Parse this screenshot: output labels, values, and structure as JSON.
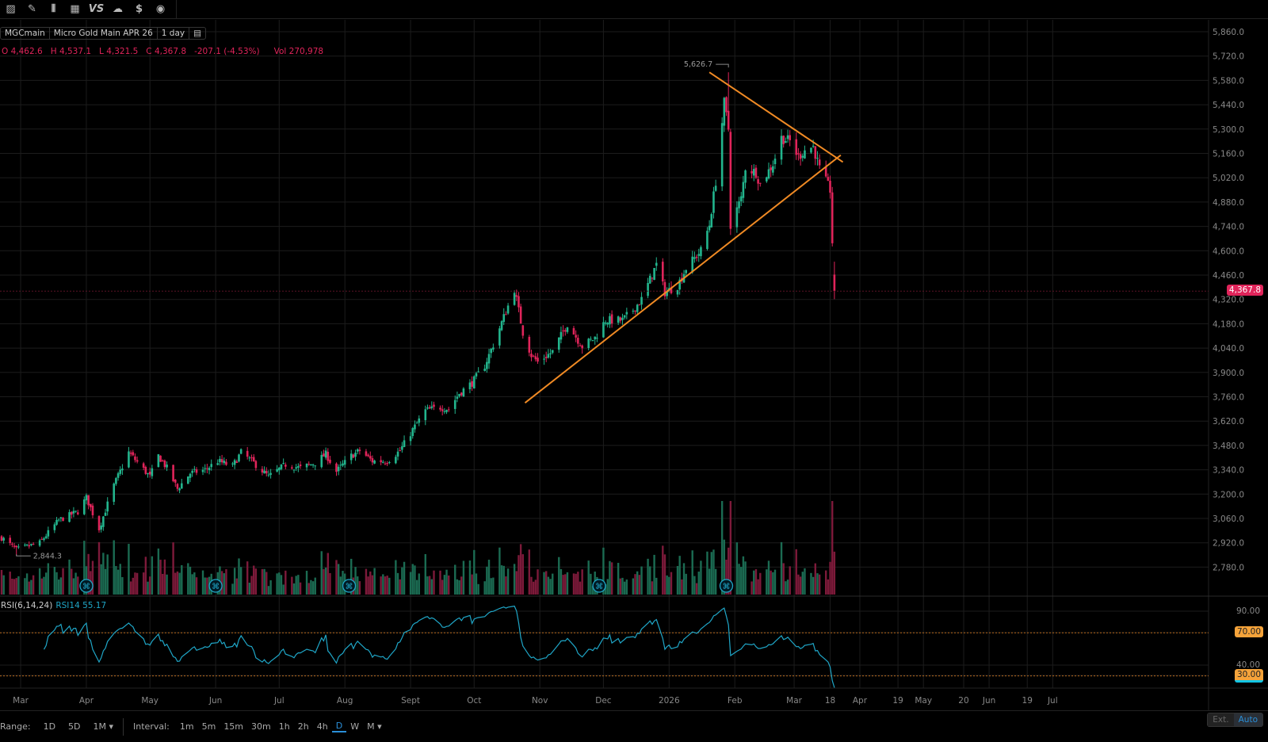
{
  "toolbar": {
    "icons": [
      "chart-style-icon",
      "drawing-pencil-icon",
      "candlestick-icon",
      "layout-grid-icon",
      "compare-vs-icon",
      "cloud-icon",
      "dollar-icon",
      "replay-icon"
    ],
    "vs_label": "VS"
  },
  "legend": {
    "symbol": "MGCmain",
    "name": "Micro Gold Main APR 26",
    "interval": "1 day"
  },
  "ohlc": {
    "o_label": "O",
    "o": "4,462.6",
    "h_label": "H",
    "h": "4,537.1",
    "l_label": "L",
    "l": "4,321.5",
    "c_label": "C",
    "c": "4,367.8",
    "change": "-207.1 (-4.53%)",
    "vol_label": "Vol",
    "vol": "270,978"
  },
  "rsi": {
    "label": "RSI(6,14,24)",
    "value_label": "RSI14 55.17",
    "axis": [
      "90.00",
      "40.00"
    ],
    "overbought": "70.00",
    "oversold": "30.00"
  },
  "colors": {
    "up": "#22b58d",
    "down": "#e0245a",
    "up_vol": "#1b6b52",
    "down_vol": "#7d1a3a",
    "trendline": "#f08a24",
    "rsi": "#1fa6c7",
    "price_tag": "#e0245a",
    "rsi_tag": "#f5a33a"
  },
  "bottom": {
    "range_label": "Range:",
    "ranges": [
      "1D",
      "5D",
      "1M ▾"
    ],
    "interval_label": "Interval:",
    "intervals": [
      "1m",
      "5m",
      "15m",
      "30m",
      "1h",
      "2h",
      "4h",
      "D",
      "W",
      "M ▾"
    ],
    "selected_interval": "D",
    "ext": "Ext.",
    "auto": "Auto"
  },
  "chart_data": {
    "type": "candlestick",
    "symbol": "MGCmain",
    "y_ticks": [
      "5,860.0",
      "5,720.0",
      "5,580.0",
      "5,440.0",
      "5,300.0",
      "5,160.0",
      "5,020.0",
      "4,880.0",
      "4,740.0",
      "4,600.0",
      "4,460.0",
      "4,320.0",
      "4,180.0",
      "4,040.0",
      "3,900.0",
      "3,760.0",
      "3,620.0",
      "3,480.0",
      "3,340.0",
      "3,200.0",
      "3,060.0",
      "2,920.0",
      "2,780.0"
    ],
    "y_tick_values": [
      5860,
      5720,
      5580,
      5440,
      5300,
      5160,
      5020,
      4880,
      4740,
      4600,
      4460,
      4320,
      4180,
      4040,
      3900,
      3760,
      3620,
      3480,
      3340,
      3200,
      3060,
      2920,
      2780
    ],
    "x_ticks": [
      {
        "label": "Mar",
        "date": "2025-03-01"
      },
      {
        "label": "Apr",
        "date": "2025-04-01"
      },
      {
        "label": "May",
        "date": "2025-05-01"
      },
      {
        "label": "Jun",
        "date": "2025-06-01"
      },
      {
        "label": "Jul",
        "date": "2025-07-01"
      },
      {
        "label": "Aug",
        "date": "2025-08-01"
      },
      {
        "label": "Sept",
        "date": "2025-09-01"
      },
      {
        "label": "Oct",
        "date": "2025-10-01"
      },
      {
        "label": "Nov",
        "date": "2025-11-01"
      },
      {
        "label": "Dec",
        "date": "2025-12-01"
      },
      {
        "label": "2026",
        "date": "2026-01-01"
      },
      {
        "label": "Feb",
        "date": "2026-02-01"
      },
      {
        "label": "Mar",
        "date": "2026-03-01"
      },
      {
        "label": "18",
        "date": "2026-03-18"
      },
      {
        "label": "Apr",
        "date": "2026-04-01"
      },
      {
        "label": "19",
        "date": "2026-04-19"
      },
      {
        "label": "May",
        "date": "2026-05-01"
      },
      {
        "label": "20",
        "date": "2026-05-20"
      },
      {
        "label": "Jun",
        "date": "2026-06-01"
      },
      {
        "label": "19",
        "date": "2026-06-19"
      },
      {
        "label": "Jul",
        "date": "2026-07-01"
      }
    ],
    "last_price": "4,367.8",
    "last_price_value": 4367.8,
    "last_candle": {
      "open": 4462.6,
      "high": 4537.1,
      "low": 4321.5,
      "close": 4367.8
    },
    "high_marker": {
      "label": "5,626.7",
      "value": 5626.7,
      "date": "2026-01-29"
    },
    "low_marker": {
      "label": "2,844.3",
      "value": 2844.3,
      "date": "2025-02-27"
    },
    "events_dates": [
      "2025-04-01",
      "2025-06-01",
      "2025-08-03",
      "2025-11-29",
      "2026-01-28"
    ],
    "trendlines": [
      {
        "from": {
          "date": "2026-01-20",
          "price": 5626.7
        },
        "to": {
          "date": "2026-03-24",
          "price": 5110
        }
      },
      {
        "from": {
          "date": "2025-10-25",
          "price": 3725
        },
        "to": {
          "date": "2026-03-23",
          "price": 5150
        }
      }
    ],
    "close_path": [
      [
        "2025-02-20",
        2950
      ],
      [
        "2025-02-27",
        2880
      ],
      [
        "2025-03-10",
        2920
      ],
      [
        "2025-03-19",
        3050
      ],
      [
        "2025-03-28",
        3100
      ],
      [
        "2025-04-01",
        3180
      ],
      [
        "2025-04-07",
        3000
      ],
      [
        "2025-04-14",
        3250
      ],
      [
        "2025-04-21",
        3440
      ],
      [
        "2025-05-01",
        3300
      ],
      [
        "2025-05-05",
        3420
      ],
      [
        "2025-05-09",
        3350
      ],
      [
        "2025-05-14",
        3230
      ],
      [
        "2025-05-20",
        3320
      ],
      [
        "2025-05-27",
        3340
      ],
      [
        "2025-06-02",
        3390
      ],
      [
        "2025-06-09",
        3360
      ],
      [
        "2025-06-13",
        3440
      ],
      [
        "2025-06-19",
        3380
      ],
      [
        "2025-06-26",
        3300
      ],
      [
        "2025-07-04",
        3370
      ],
      [
        "2025-07-11",
        3350
      ],
      [
        "2025-07-18",
        3380
      ],
      [
        "2025-07-23",
        3430
      ],
      [
        "2025-07-28",
        3330
      ],
      [
        "2025-08-04",
        3420
      ],
      [
        "2025-08-08",
        3450
      ],
      [
        "2025-08-14",
        3390
      ],
      [
        "2025-08-21",
        3390
      ],
      [
        "2025-08-27",
        3450
      ],
      [
        "2025-09-02",
        3570
      ],
      [
        "2025-09-08",
        3680
      ],
      [
        "2025-09-15",
        3700
      ],
      [
        "2025-09-19",
        3690
      ],
      [
        "2025-09-24",
        3780
      ],
      [
        "2025-09-30",
        3840
      ],
      [
        "2025-10-06",
        3940
      ],
      [
        "2025-10-10",
        4060
      ],
      [
        "2025-10-16",
        4250
      ],
      [
        "2025-10-20",
        4380
      ],
      [
        "2025-10-24",
        4130
      ],
      [
        "2025-10-28",
        4000
      ],
      [
        "2025-10-31",
        3960
      ],
      [
        "2025-11-07",
        4020
      ],
      [
        "2025-11-14",
        4180
      ],
      [
        "2025-11-21",
        4050
      ],
      [
        "2025-11-27",
        4100
      ],
      [
        "2025-12-02",
        4200
      ],
      [
        "2025-12-10",
        4200
      ],
      [
        "2025-12-15",
        4260
      ],
      [
        "2025-12-19",
        4320
      ],
      [
        "2025-12-26",
        4520
      ],
      [
        "2025-12-30",
        4360
      ],
      [
        "2026-01-05",
        4400
      ],
      [
        "2026-01-09",
        4500
      ],
      [
        "2026-01-16",
        4600
      ],
      [
        "2026-01-20",
        4750
      ],
      [
        "2026-01-23",
        5000
      ],
      [
        "2026-01-27",
        5450
      ],
      [
        "2026-01-29",
        5300
      ],
      [
        "2026-01-30",
        4750
      ],
      [
        "2026-02-04",
        4900
      ],
      [
        "2026-02-06",
        5080
      ],
      [
        "2026-02-11",
        5050
      ],
      [
        "2026-02-13",
        4980
      ],
      [
        "2026-02-19",
        5100
      ],
      [
        "2026-02-23",
        5250
      ],
      [
        "2026-02-27",
        5230
      ],
      [
        "2026-03-03",
        5140
      ],
      [
        "2026-03-06",
        5180
      ],
      [
        "2026-03-10",
        5200
      ],
      [
        "2026-03-13",
        5070
      ],
      [
        "2026-03-18",
        4950
      ],
      [
        "2026-03-19",
        4650
      ],
      [
        "2026-03-20",
        4367.8
      ]
    ]
  }
}
